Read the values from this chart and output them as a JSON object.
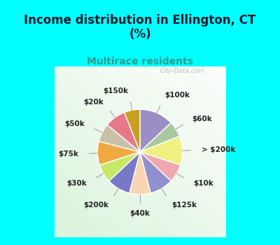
{
  "title": "Income distribution in Ellington, CT\n(%)",
  "subtitle": "Multirace residents",
  "background_top": "#00FFFF",
  "background_chart_color": "#d8efe0",
  "labels": [
    "$100k",
    "$60k",
    "> $200k",
    "$10k",
    "$125k",
    "$40k",
    "$200k",
    "$30k",
    "$75k",
    "$50k",
    "$20k",
    "$150k"
  ],
  "values": [
    13,
    6,
    11,
    7,
    9,
    8,
    9,
    7,
    9,
    7,
    8,
    6
  ],
  "colors": [
    "#9b8ec4",
    "#a8c8a0",
    "#f0f080",
    "#f0a8b0",
    "#9090cc",
    "#f8d4b0",
    "#7878c8",
    "#c8e868",
    "#f0a840",
    "#c8c0a8",
    "#e87888",
    "#c8a020"
  ],
  "startangle": 90,
  "label_fontsize": 7.5,
  "title_fontsize": 12,
  "subtitle_fontsize": 10,
  "title_color": "#1a1a2e",
  "subtitle_color": "#2a9d8f",
  "watermark": "City-Data.com"
}
